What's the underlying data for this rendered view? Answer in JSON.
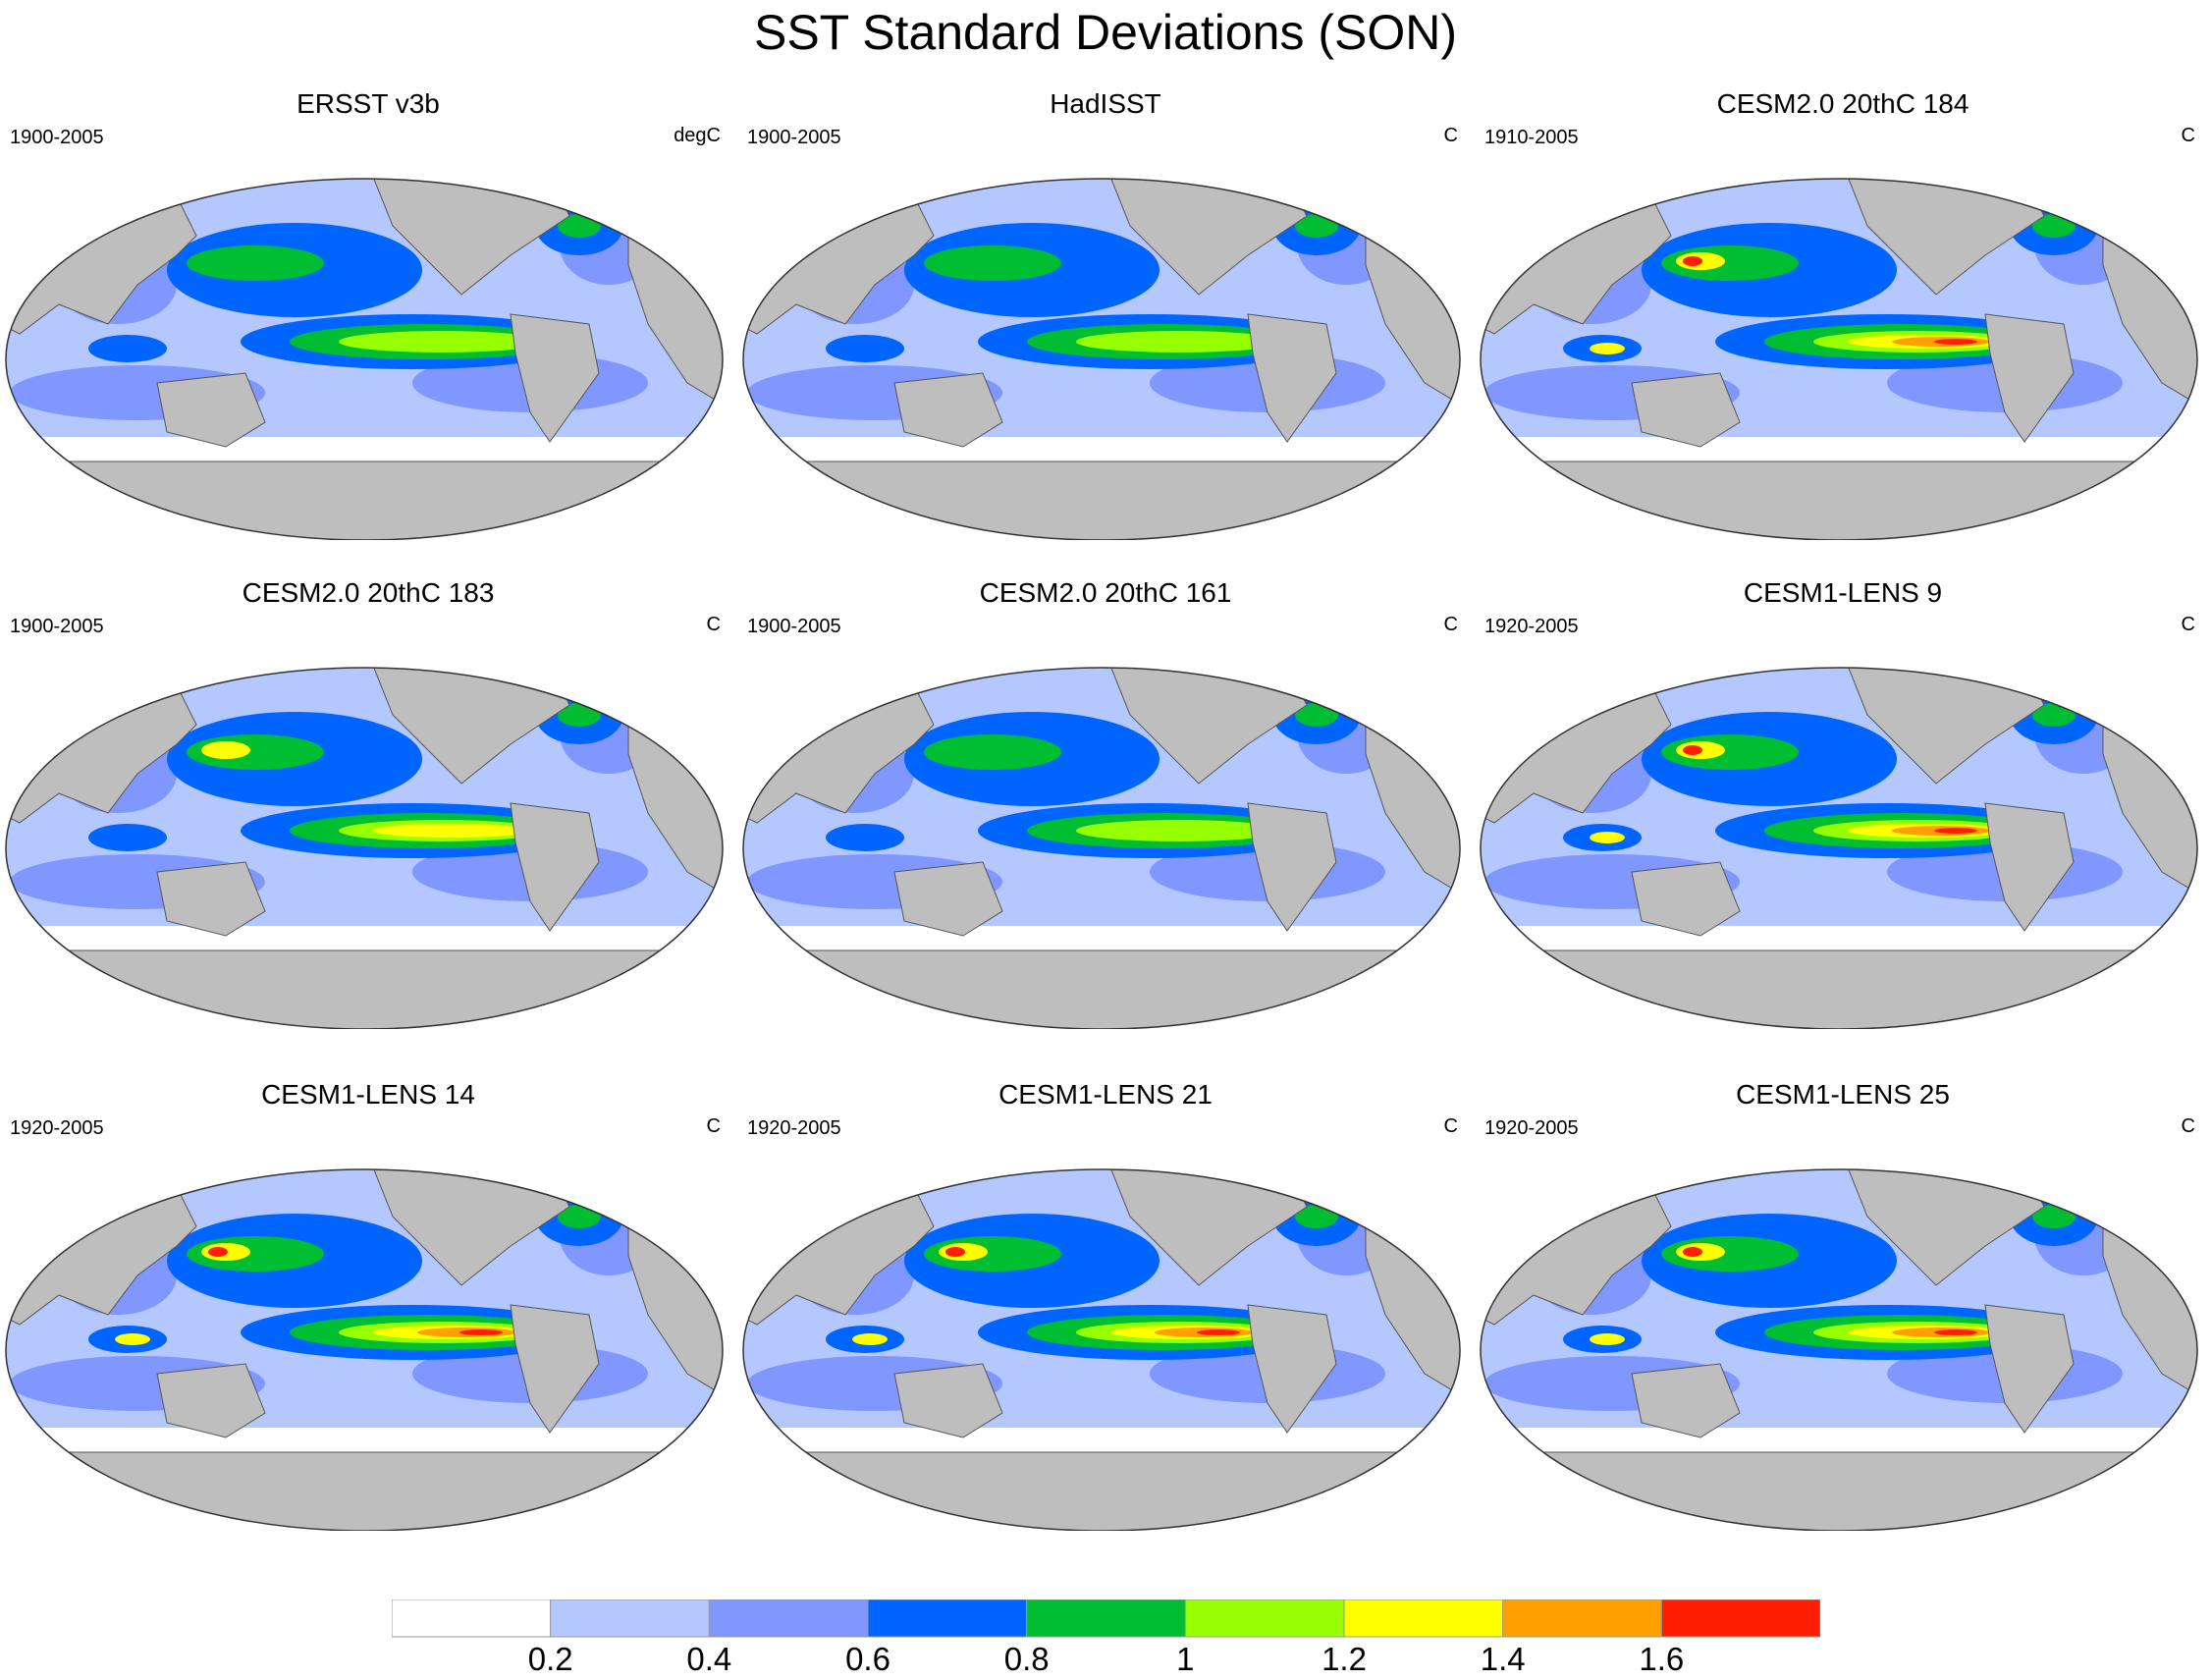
{
  "title": "SST Standard Deviations (SON)",
  "panels": [
    {
      "title": "ERSST v3b",
      "period": "1900-2005",
      "units": "degC",
      "hot": 1
    },
    {
      "title": "HadISST",
      "period": "1900-2005",
      "units": "C",
      "hot": 1
    },
    {
      "title": "CESM2.0 20thC 184",
      "period": "1910-2005",
      "units": "C",
      "hot": 3
    },
    {
      "title": "CESM2.0 20thC 183",
      "period": "1900-2005",
      "units": "C",
      "hot": 2
    },
    {
      "title": "CESM2.0 20thC 161",
      "period": "1900-2005",
      "units": "C",
      "hot": 1
    },
    {
      "title": "CESM1-LENS 9",
      "period": "1920-2005",
      "units": "C",
      "hot": 3
    },
    {
      "title": "CESM1-LENS 14",
      "period": "1920-2005",
      "units": "C",
      "hot": 3
    },
    {
      "title": "CESM1-LENS 21",
      "period": "1920-2005",
      "units": "C",
      "hot": 3
    },
    {
      "title": "CESM1-LENS 25",
      "period": "1920-2005",
      "units": "C",
      "hot": 3
    }
  ],
  "colorbar": {
    "labels": [
      "0.2",
      "0.4",
      "0.6",
      "0.8",
      "1",
      "1.2",
      "1.4",
      "1.6"
    ],
    "colors": [
      "#ffffff",
      "#b4c8ff",
      "#7f97ff",
      "#0064ff",
      "#00be32",
      "#96ff00",
      "#ffff00",
      "#ffa000",
      "#ff1e00"
    ]
  },
  "land_color": "#bebebe"
}
